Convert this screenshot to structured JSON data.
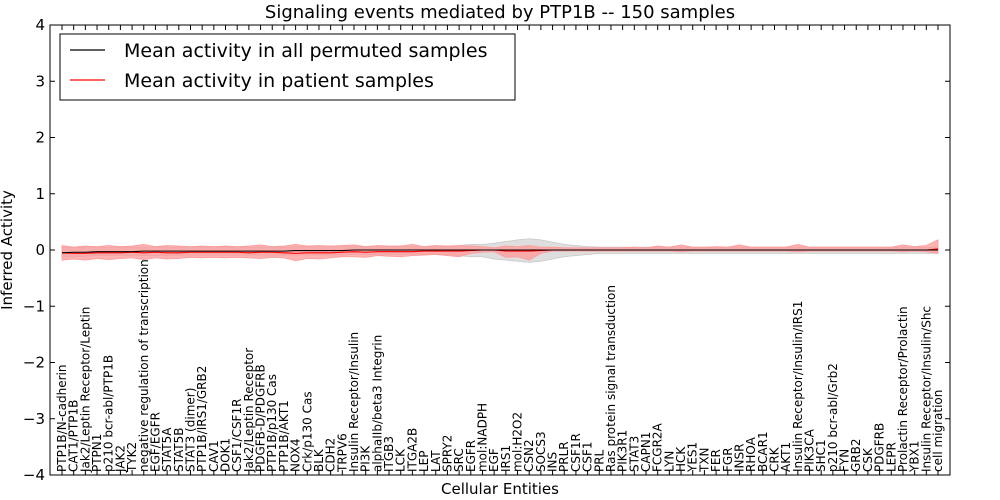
{
  "chart_data": {
    "type": "line",
    "title": "Signaling events mediated by PTP1B -- 150 samples",
    "xlabel": "Cellular Entities",
    "ylabel": "Inferred Activity",
    "ylim": [
      -4,
      4
    ],
    "yticks": [
      4,
      3,
      2,
      1,
      0,
      -1,
      -2,
      -3,
      -4
    ],
    "ytick_labels": [
      "4",
      "3",
      "2",
      "1",
      "0",
      "−1",
      "−2",
      "−3",
      "−4"
    ],
    "legend_position": "upper-left",
    "categories": [
      "PTP1B/N-cadherin",
      "CAT1/PTP1B",
      "Jak2/Leptin Receptor/Leptin",
      "PTPN1",
      "p210 bcr-abl/PTP1B",
      "JAK2",
      "TYK2",
      "negative regulation of transcription",
      "EGF/EGFR",
      "STAT5A",
      "STAT5B",
      "STAT3 (dimer)",
      "PTP1B/IRS1/GRB2",
      "CAV1",
      "DOK1",
      "CSF1/CSF1R",
      "Jak2/Leptin Receptor",
      "PDGFB-D/PDGFRB",
      "PTP1B/p130 Cas",
      "PTP1B/AKT1",
      "NOX4",
      "Crk/p130 Cas",
      "BLK",
      "CDH2",
      "TRPV6",
      "Insulin Receptor/Insulin",
      "PI3K",
      "alphaIIb/beta3 Integrin",
      "ITGB3",
      "LCK",
      "ITGA2B",
      "LEP",
      "LAT",
      "SPRY2",
      "SRC",
      "EGFR",
      "mol:NADPH",
      "EGF",
      "IRS1",
      "mol:H2O2",
      "CSN2",
      "SOCS3",
      "INS",
      "PRLR",
      "CSF1R",
      "CSF1",
      "PRL",
      "Ras protein signal transduction",
      "PIK3R1",
      "STAT3",
      "CAPN1",
      "FCGR2A",
      "LYN",
      "HCK",
      "YES1",
      "TXN",
      "FER",
      "FGR",
      "INSR",
      "RHOA",
      "BCAR1",
      "CRK",
      "AKT1",
      "Insulin Receptor/Insulin/IRS1",
      "PIK3CA",
      "SHC1",
      "p210 bcr-abl/Grb2",
      "FYN",
      "GRB2",
      "CSK",
      "PDGFRB",
      "LEPR",
      "Prolactin Receptor/Prolactin",
      "YBX1",
      "Insulin Receptor/Insulin/Shc",
      "cell migration"
    ],
    "series": [
      {
        "name": "Mean activity in all permuted samples",
        "color": "#000000",
        "values": [
          -0.05,
          -0.04,
          -0.04,
          -0.03,
          -0.03,
          -0.03,
          -0.03,
          -0.02,
          -0.02,
          -0.02,
          -0.02,
          -0.02,
          -0.02,
          -0.02,
          -0.02,
          -0.02,
          -0.02,
          -0.02,
          -0.02,
          -0.02,
          -0.01,
          -0.01,
          -0.01,
          -0.01,
          -0.01,
          0.0,
          0.0,
          0.0,
          0.0,
          0.0,
          0.0,
          0.0,
          0.0,
          0.0,
          0.0,
          0.0,
          0.0,
          0.0,
          0.0,
          0.0,
          0.0,
          0.0,
          0.0,
          0.0,
          0.0,
          0.0,
          0.0,
          0.0,
          0.0,
          0.0,
          0.0,
          0.0,
          0.0,
          0.0,
          0.0,
          0.0,
          0.0,
          0.0,
          0.0,
          0.0,
          0.0,
          0.0,
          0.0,
          0.0,
          0.0,
          0.0,
          0.0,
          0.0,
          0.0,
          0.0,
          0.0,
          0.0,
          0.0,
          0.0,
          0.0,
          0.0
        ],
        "band": {
          "color": "#c8c8c8",
          "lower": [
            -0.12,
            -0.12,
            -0.11,
            -0.1,
            -0.1,
            -0.1,
            -0.1,
            -0.1,
            -0.1,
            -0.1,
            -0.09,
            -0.09,
            -0.09,
            -0.09,
            -0.09,
            -0.09,
            -0.09,
            -0.09,
            -0.09,
            -0.09,
            -0.09,
            -0.09,
            -0.09,
            -0.09,
            -0.09,
            -0.08,
            -0.08,
            -0.08,
            -0.08,
            -0.08,
            -0.08,
            -0.08,
            -0.08,
            -0.08,
            -0.1,
            -0.12,
            -0.12,
            -0.16,
            -0.18,
            -0.2,
            -0.22,
            -0.2,
            -0.16,
            -0.12,
            -0.1,
            -0.08,
            -0.06,
            -0.06,
            -0.06,
            -0.06,
            -0.06,
            -0.06,
            -0.06,
            -0.06,
            -0.06,
            -0.06,
            -0.06,
            -0.06,
            -0.06,
            -0.06,
            -0.06,
            -0.06,
            -0.06,
            -0.06,
            -0.06,
            -0.06,
            -0.06,
            -0.06,
            -0.06,
            -0.06,
            -0.06,
            -0.06,
            -0.06,
            -0.06,
            -0.06,
            -0.06
          ],
          "upper": [
            0.05,
            0.05,
            0.05,
            0.05,
            0.05,
            0.05,
            0.05,
            0.05,
            0.05,
            0.05,
            0.05,
            0.05,
            0.05,
            0.05,
            0.05,
            0.05,
            0.05,
            0.05,
            0.05,
            0.05,
            0.06,
            0.06,
            0.06,
            0.06,
            0.06,
            0.06,
            0.06,
            0.06,
            0.06,
            0.06,
            0.06,
            0.06,
            0.06,
            0.06,
            0.08,
            0.1,
            0.1,
            0.12,
            0.15,
            0.18,
            0.2,
            0.18,
            0.14,
            0.1,
            0.08,
            0.06,
            0.05,
            0.05,
            0.05,
            0.05,
            0.05,
            0.05,
            0.05,
            0.05,
            0.05,
            0.05,
            0.05,
            0.05,
            0.05,
            0.05,
            0.05,
            0.05,
            0.05,
            0.05,
            0.05,
            0.05,
            0.05,
            0.05,
            0.05,
            0.05,
            0.05,
            0.05,
            0.05,
            0.05,
            0.05,
            0.05
          ]
        }
      },
      {
        "name": "Mean activity in patient samples",
        "color": "#ff0000",
        "values": [
          -0.05,
          -0.06,
          -0.06,
          -0.05,
          -0.05,
          -0.05,
          -0.04,
          -0.05,
          -0.04,
          -0.05,
          -0.05,
          -0.04,
          -0.04,
          -0.04,
          -0.04,
          -0.04,
          -0.05,
          -0.04,
          -0.04,
          -0.05,
          -0.06,
          -0.05,
          -0.05,
          -0.05,
          -0.04,
          -0.03,
          -0.04,
          -0.03,
          -0.03,
          -0.03,
          -0.03,
          -0.02,
          -0.02,
          -0.02,
          -0.02,
          -0.01,
          0.0,
          0.0,
          -0.02,
          -0.02,
          -0.02,
          -0.01,
          0.0,
          0.0,
          0.0,
          0.0,
          0.0,
          0.0,
          0.0,
          0.0,
          0.0,
          0.0,
          0.0,
          0.0,
          0.0,
          0.0,
          0.0,
          0.0,
          0.0,
          0.0,
          0.0,
          0.0,
          0.0,
          0.0,
          0.0,
          0.0,
          0.0,
          0.0,
          0.0,
          0.0,
          0.0,
          0.0,
          0.0,
          0.0,
          0.0,
          0.02
        ],
        "band": {
          "color": "#ff9a9a",
          "lower": [
            -0.18,
            -0.16,
            -0.18,
            -0.15,
            -0.17,
            -0.15,
            -0.14,
            -0.17,
            -0.14,
            -0.16,
            -0.15,
            -0.13,
            -0.14,
            -0.13,
            -0.14,
            -0.13,
            -0.14,
            -0.15,
            -0.13,
            -0.14,
            -0.19,
            -0.15,
            -0.16,
            -0.14,
            -0.12,
            -0.12,
            -0.13,
            -0.1,
            -0.11,
            -0.12,
            -0.1,
            -0.09,
            -0.08,
            -0.1,
            -0.12,
            -0.06,
            -0.04,
            -0.03,
            -0.13,
            -0.12,
            -0.18,
            -0.06,
            -0.02,
            -0.02,
            -0.02,
            -0.02,
            -0.02,
            -0.02,
            -0.02,
            -0.02,
            -0.02,
            -0.02,
            -0.02,
            -0.03,
            -0.02,
            -0.02,
            -0.02,
            -0.02,
            -0.02,
            -0.02,
            -0.02,
            -0.02,
            -0.02,
            -0.03,
            -0.02,
            -0.02,
            -0.02,
            -0.02,
            -0.02,
            -0.02,
            -0.02,
            -0.02,
            -0.03,
            -0.02,
            -0.03,
            -0.06
          ],
          "upper": [
            0.08,
            0.05,
            0.07,
            0.06,
            0.08,
            0.06,
            0.07,
            0.1,
            0.06,
            0.08,
            0.07,
            0.06,
            0.07,
            0.06,
            0.07,
            0.06,
            0.07,
            0.09,
            0.06,
            0.07,
            0.1,
            0.07,
            0.08,
            0.07,
            0.08,
            0.09,
            0.06,
            0.08,
            0.07,
            0.07,
            0.1,
            0.06,
            0.08,
            0.07,
            0.08,
            0.07,
            0.06,
            0.04,
            0.07,
            0.06,
            0.08,
            0.05,
            0.05,
            0.04,
            0.04,
            0.04,
            0.04,
            0.04,
            0.04,
            0.05,
            0.04,
            0.07,
            0.05,
            0.09,
            0.05,
            0.05,
            0.06,
            0.05,
            0.09,
            0.05,
            0.05,
            0.05,
            0.05,
            0.1,
            0.05,
            0.05,
            0.05,
            0.05,
            0.05,
            0.05,
            0.05,
            0.05,
            0.09,
            0.06,
            0.08,
            0.18
          ]
        }
      }
    ]
  }
}
